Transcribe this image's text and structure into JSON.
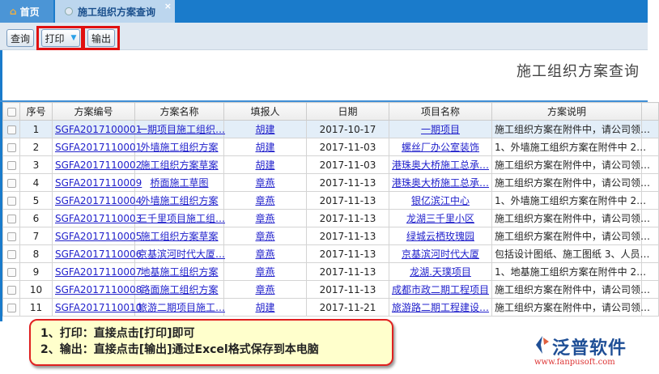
{
  "tabs": {
    "home": "首页",
    "active": "施工组织方案查询",
    "close": "×"
  },
  "toolbar": {
    "query": "查询",
    "print": "打印",
    "export": "输出"
  },
  "page_title": "施工组织方案查询",
  "table": {
    "headers": [
      "序号",
      "方案编号",
      "方案名称",
      "填报人",
      "日期",
      "项目名称",
      "方案说明"
    ],
    "rows": [
      [
        "1",
        "SGFA2017100001",
        "一期项目施工组织…",
        "胡建",
        "2017-10-17",
        "一期项目",
        "施工组织方案在附件中，请公司领…"
      ],
      [
        "2",
        "SGFA2017110001",
        "外墙施工组织方案",
        "胡建",
        "2017-11-03",
        "螺丝厂办公室装饰",
        "1、外墙施工组织方案在附件中 2…"
      ],
      [
        "3",
        "SGFA2017110002",
        "施工组织方案草案",
        "胡建",
        "2017-11-03",
        "港珠奥大桥施工总承…",
        "施工组织方案在附件中，请公司领…"
      ],
      [
        "4",
        "SGFA2017110009",
        "桥面施工草图",
        "章燕",
        "2017-11-13",
        "港珠奥大桥施工总承…",
        "施工组织方案在附件中，请公司领…"
      ],
      [
        "5",
        "SGFA2017110004",
        "外墙施工组织方案",
        "章燕",
        "2017-11-13",
        "银亿滨江中心",
        "1、外墙施工组织方案在附件中 2…"
      ],
      [
        "6",
        "SGFA2017110003",
        "三千里项目施工组…",
        "章燕",
        "2017-11-13",
        "龙湖三千里小区",
        "施工组织方案在附件中，请公司领…"
      ],
      [
        "7",
        "SGFA2017110005",
        "施工组织方案草案",
        "章燕",
        "2017-11-13",
        "绿城云栖玫瑰园",
        "施工组织方案在附件中，请公司领…"
      ],
      [
        "8",
        "SGFA2017110006",
        "京基滨河时代大厦…",
        "章燕",
        "2017-11-13",
        "京基滨河时代大厦",
        "包括设计图纸、施工图纸 3、人员…"
      ],
      [
        "9",
        "SGFA2017110007",
        "地基施工组织方案",
        "章燕",
        "2017-11-13",
        "龙湖.天璞项目",
        "1、地基施工组织方案在附件中 2…"
      ],
      [
        "10",
        "SGFA2017110008",
        "路面施工组织方案",
        "章燕",
        "2017-11-13",
        "成都市政二期工程项目",
        "施工组织方案在附件中，请公司领…"
      ],
      [
        "11",
        "SGFA2017110010",
        "旅游二期项目施工…",
        "胡建",
        "2017-11-21",
        "旅游路二期工程建设…",
        "施工组织方案在附件中，请公司领…"
      ]
    ]
  },
  "callout": {
    "line1": "1、打印：直接点击[打印]即可",
    "line2": "2、输出：直接点击[输出]通过Excel格式保存到本电脑"
  },
  "logo": {
    "name": "泛普软件",
    "url": "www.fanpusoft.com"
  },
  "colors": {
    "tabbar": "#1a7bcb",
    "highlight": "#e01010",
    "link": "#2222cc",
    "callout_bg": "#ffffcc"
  }
}
